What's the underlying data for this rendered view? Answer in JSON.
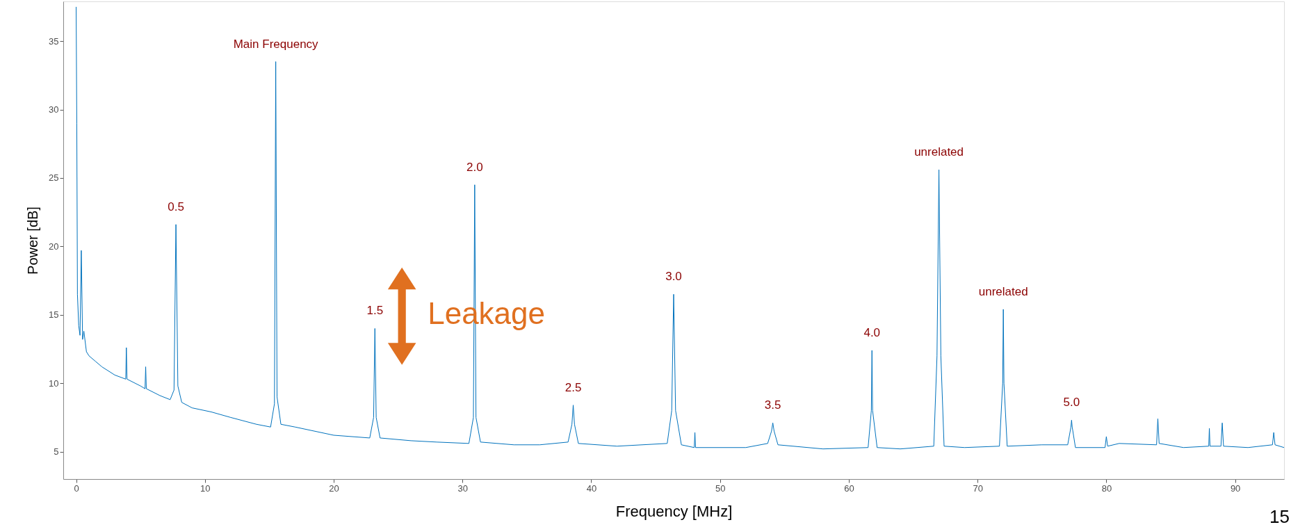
{
  "chart_data": {
    "type": "line",
    "xlabel": "Frequency [MHz]",
    "ylabel": "Power [dB]",
    "xlim": [
      -1,
      93.8
    ],
    "ylim": [
      3,
      37.9
    ],
    "xticks": [
      0,
      10,
      20,
      30,
      40,
      50,
      60,
      70,
      80,
      90
    ],
    "yticks": [
      5,
      10,
      15,
      20,
      25,
      30,
      35
    ],
    "x": [
      0,
      0.05,
      0.1,
      0.2,
      0.3,
      0.4,
      0.5,
      0.6,
      0.8,
      1.0,
      1.5,
      2.0,
      3.0,
      3.85,
      3.9,
      3.95,
      5.0,
      5.35,
      5.4,
      5.45,
      6.5,
      7.3,
      7.6,
      7.75,
      7.9,
      8.2,
      9,
      10.5,
      12,
      14,
      15.1,
      15.4,
      15.5,
      15.6,
      15.9,
      17,
      20,
      22.8,
      23.1,
      23.2,
      23.3,
      23.6,
      26,
      28,
      30.5,
      30.85,
      30.95,
      31.05,
      31.4,
      34,
      36,
      38.2,
      38.5,
      38.6,
      38.7,
      39,
      42,
      45.9,
      46.25,
      46.4,
      46.55,
      47,
      48,
      48.05,
      48.1,
      52,
      53.7,
      54.0,
      54.1,
      54.2,
      54.5,
      58,
      61.5,
      61.75,
      61.8,
      61.85,
      62.2,
      64,
      66.6,
      66.85,
      67.0,
      67.15,
      67.4,
      69,
      71.7,
      71.95,
      72.0,
      72.05,
      72.3,
      75,
      77.0,
      77.25,
      77.3,
      77.35,
      77.6,
      79.9,
      80.0,
      80.1,
      81,
      83.9,
      84.0,
      84.1,
      86,
      87.95,
      88.0,
      88.05,
      88.9,
      89.0,
      89.1,
      91,
      92.9,
      93.0,
      93.1,
      93.8
    ],
    "series": [
      {
        "color": "#0072bd",
        "values": [
          37.5,
          29,
          16.5,
          14.2,
          13.5,
          19.7,
          13.2,
          13.8,
          12.3,
          12.0,
          11.6,
          11.2,
          10.6,
          10.3,
          12.6,
          10.3,
          9.8,
          9.6,
          11.2,
          9.6,
          9.1,
          8.8,
          9.5,
          21.6,
          9.8,
          8.6,
          8.2,
          7.9,
          7.5,
          7.0,
          6.8,
          8.5,
          33.5,
          9,
          7.0,
          6.8,
          6.2,
          6.0,
          7.5,
          14.0,
          7.5,
          6.0,
          5.8,
          5.7,
          5.6,
          7.5,
          24.5,
          7.5,
          5.7,
          5.5,
          5.5,
          5.7,
          7.0,
          8.4,
          7.0,
          5.6,
          5.4,
          5.6,
          8,
          16.5,
          8,
          5.5,
          5.3,
          6.4,
          5.3,
          5.3,
          5.6,
          6.5,
          7.1,
          6.5,
          5.5,
          5.2,
          5.3,
          8,
          12.4,
          8,
          5.3,
          5.2,
          5.4,
          12,
          25.6,
          12,
          5.4,
          5.3,
          5.4,
          10,
          15.4,
          10,
          5.4,
          5.5,
          5.5,
          6.8,
          7.3,
          6.8,
          5.3,
          5.3,
          6.1,
          5.4,
          5.6,
          5.5,
          7.4,
          5.6,
          5.3,
          5.4,
          6.7,
          5.4,
          5.4,
          7.1,
          5.4,
          5.3,
          5.5,
          6.4,
          5.5,
          5.3
        ]
      }
    ],
    "annotations": [
      {
        "text": "Main Frequency",
        "x": 15.5,
        "y": 33.5
      },
      {
        "text": "0.5",
        "x": 7.75,
        "y": 21.6
      },
      {
        "text": "1.5",
        "x": 23.2,
        "y": 14.0
      },
      {
        "text": "2.0",
        "x": 30.95,
        "y": 24.5
      },
      {
        "text": "2.5",
        "x": 38.6,
        "y": 8.4
      },
      {
        "text": "3.0",
        "x": 46.4,
        "y": 16.5
      },
      {
        "text": "3.5",
        "x": 54.1,
        "y": 7.1
      },
      {
        "text": "4.0",
        "x": 61.8,
        "y": 12.4
      },
      {
        "text": "unrelated",
        "x": 67.0,
        "y": 25.6
      },
      {
        "text": "unrelated",
        "x": 72.0,
        "y": 15.4
      },
      {
        "text": "5.0",
        "x": 77.3,
        "y": 7.3
      },
      "Leakage",
      "15"
    ]
  }
}
